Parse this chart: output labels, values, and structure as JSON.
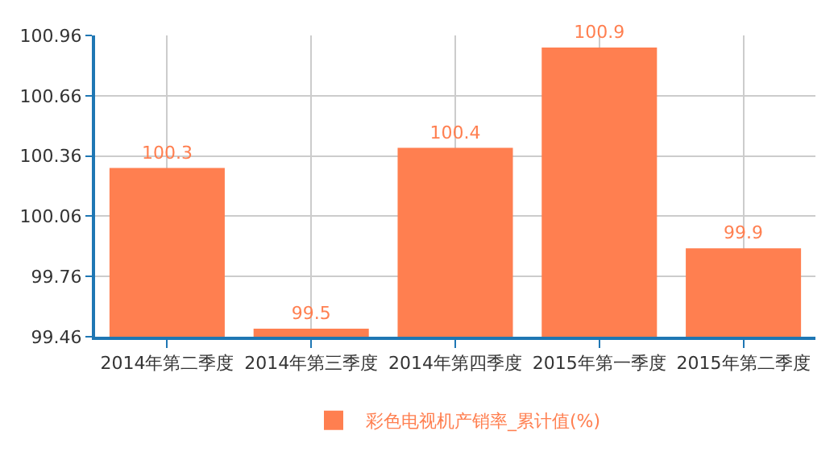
{
  "chart_data": {
    "type": "bar",
    "categories": [
      "2014年第二季度",
      "2014年第三季度",
      "2014年第四季度",
      "2015年第一季度",
      "2015年第二季度"
    ],
    "series": [
      {
        "name": "彩色电视机产销率_累计值(%)",
        "color": "#ff7f50",
        "values": [
          100.3,
          99.5,
          100.4,
          100.9,
          99.9
        ]
      }
    ],
    "ylim": [
      99.46,
      100.96
    ],
    "yticks": [
      99.46,
      99.76,
      100.06,
      100.36,
      100.66,
      100.96
    ],
    "data_labels": true,
    "grid": true,
    "legend": "bottom"
  }
}
